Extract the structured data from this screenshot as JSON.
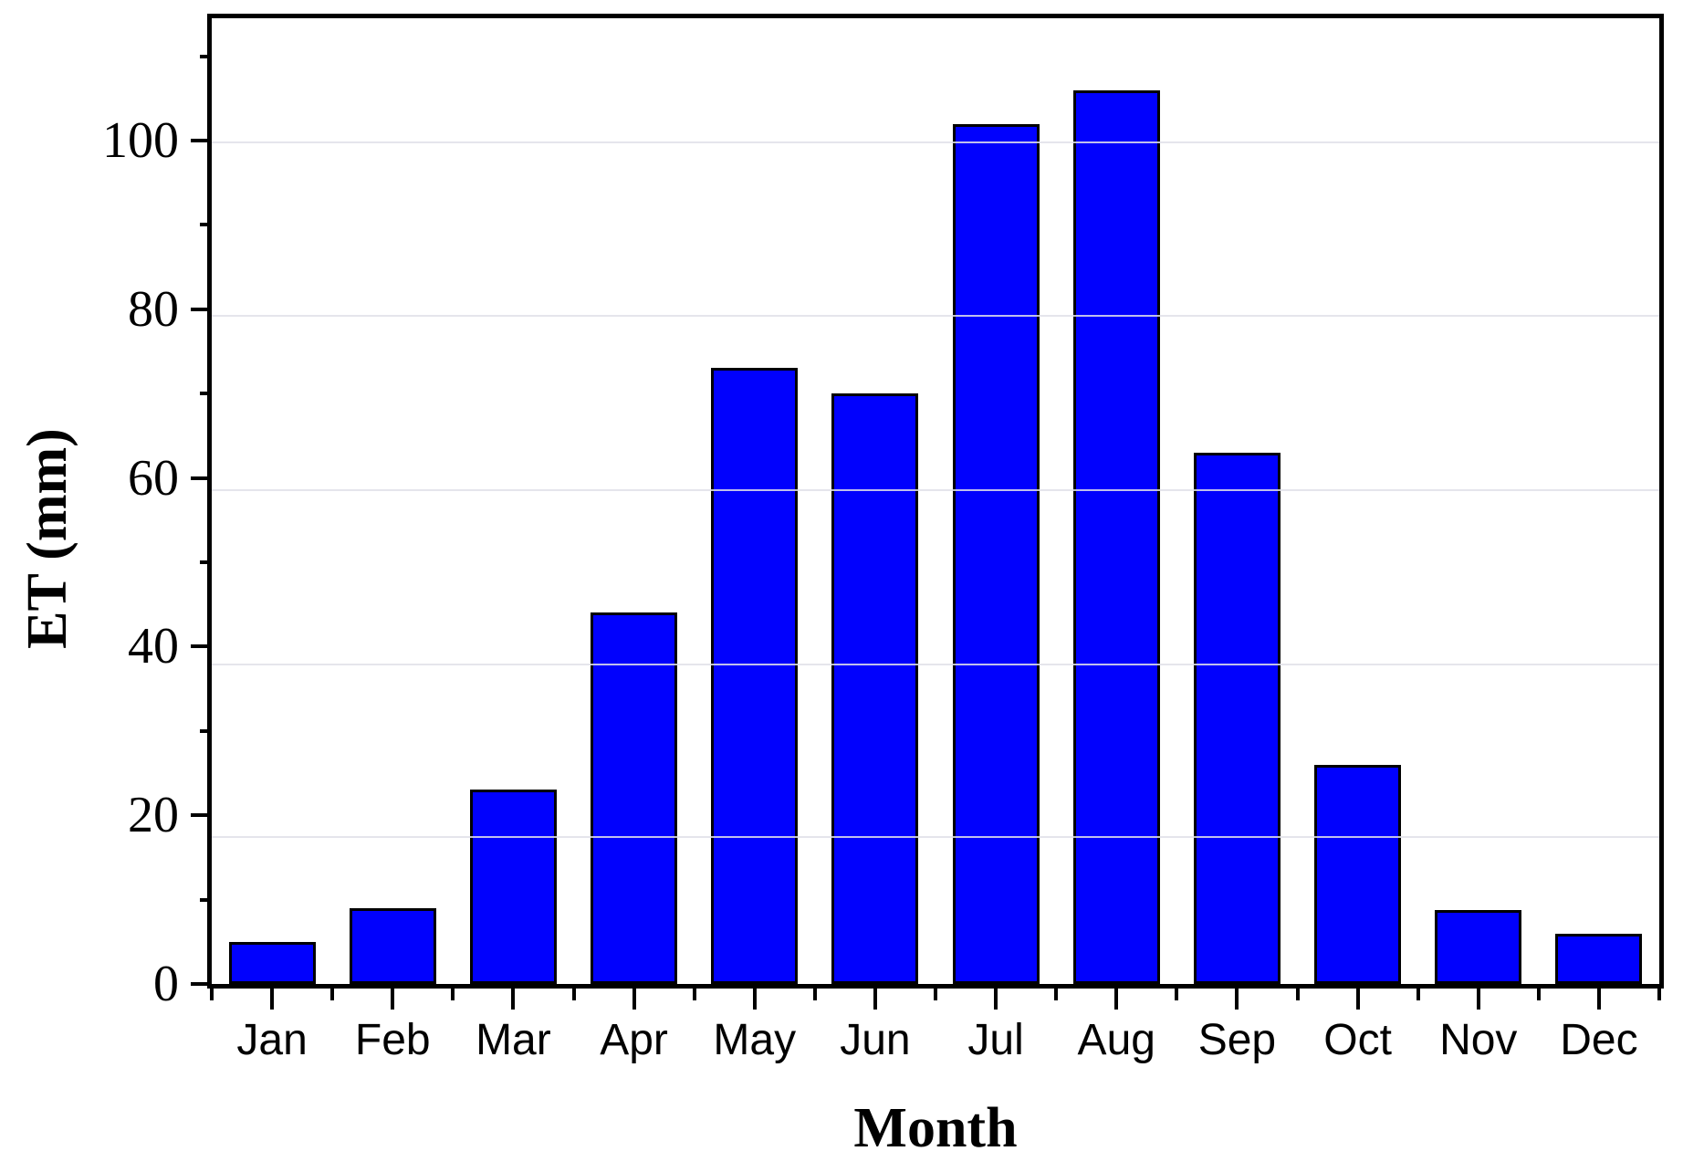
{
  "figure": {
    "background_color": "#ffffff"
  },
  "chart_data": {
    "type": "bar",
    "title": "",
    "xlabel": "Month",
    "ylabel": "ET (mm)",
    "categories": [
      "Jan",
      "Feb",
      "Mar",
      "Apr",
      "May",
      "Jun",
      "Jul",
      "Aug",
      "Sep",
      "Oct",
      "Nov",
      "Dec"
    ],
    "values": [
      5,
      9,
      23,
      44,
      73,
      70,
      102,
      106,
      63,
      26,
      8.8,
      6
    ],
    "ylim": [
      0,
      114.5
    ],
    "yticks_major": [
      0,
      20,
      40,
      60,
      80,
      100
    ],
    "yticks_minor": [
      10,
      30,
      50,
      70,
      90,
      110
    ],
    "gridline_values": [
      17.4,
      37.9,
      58.5,
      79.2,
      99.8
    ],
    "legend": "none",
    "grid": "faint horizontal lines over bars",
    "bar_fill_color": "#0101FD",
    "bar_edge_color": "#000000",
    "axis_color": "#000000",
    "gridline_color": "rgba(224,224,233,0.85)",
    "bar_width_fraction": 0.72
  }
}
